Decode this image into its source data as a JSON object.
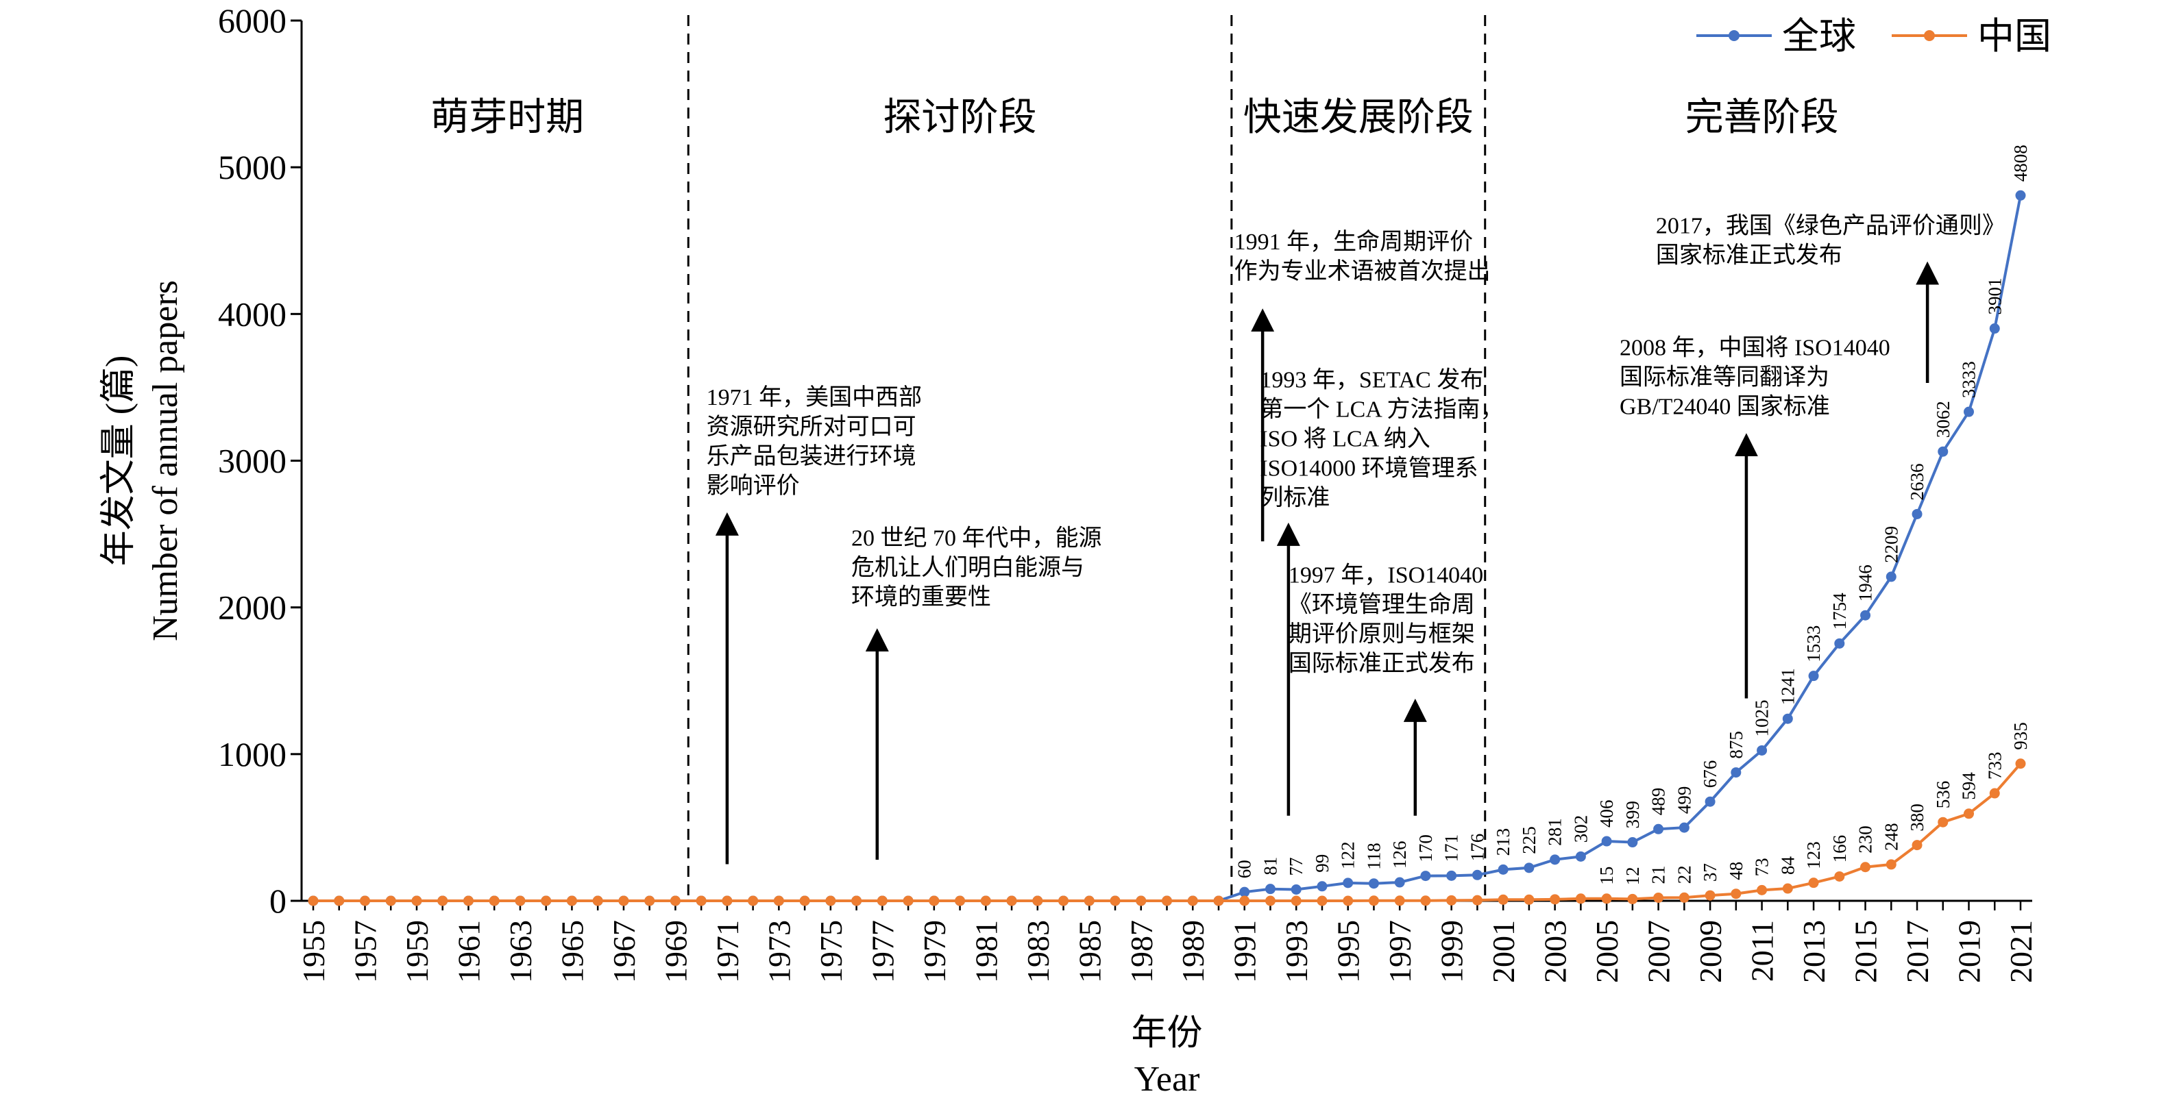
{
  "chart_data": {
    "type": "line",
    "xlabel_cn": "年份",
    "xlabel_en": "Year",
    "ylabel_cn": "年发文量 (篇)",
    "ylabel_en": "Number of annual papers",
    "ylim": [
      0,
      6000
    ],
    "yticks": [
      0,
      1000,
      2000,
      3000,
      4000,
      5000,
      6000
    ],
    "xlim": [
      1955,
      2021
    ],
    "xtick_labels": [
      "1955",
      "1957",
      "1959",
      "1961",
      "1963",
      "1965",
      "1967",
      "1969",
      "1971",
      "1973",
      "1975",
      "1977",
      "1979",
      "1981",
      "1983",
      "1985",
      "1987",
      "1989",
      "1991",
      "1993",
      "1995",
      "1997",
      "1999",
      "2001",
      "2003",
      "2005",
      "2007",
      "2009",
      "2011",
      "2013",
      "2015",
      "2017",
      "2019",
      "2021"
    ],
    "legend_position": "top-right",
    "series": [
      {
        "name": "全球",
        "color": "#4472C4",
        "points": [
          {
            "x": 1955,
            "y": 0
          },
          {
            "x": 1956,
            "y": 0
          },
          {
            "x": 1957,
            "y": 0
          },
          {
            "x": 1958,
            "y": 0
          },
          {
            "x": 1959,
            "y": 0
          },
          {
            "x": 1960,
            "y": 0
          },
          {
            "x": 1961,
            "y": 0
          },
          {
            "x": 1962,
            "y": 0
          },
          {
            "x": 1963,
            "y": 0
          },
          {
            "x": 1964,
            "y": 0
          },
          {
            "x": 1965,
            "y": 0
          },
          {
            "x": 1966,
            "y": 0
          },
          {
            "x": 1967,
            "y": 0
          },
          {
            "x": 1968,
            "y": 0
          },
          {
            "x": 1969,
            "y": 0
          },
          {
            "x": 1970,
            "y": 0
          },
          {
            "x": 1971,
            "y": 0
          },
          {
            "x": 1972,
            "y": 0
          },
          {
            "x": 1973,
            "y": 0
          },
          {
            "x": 1974,
            "y": 0
          },
          {
            "x": 1975,
            "y": 0
          },
          {
            "x": 1976,
            "y": 0
          },
          {
            "x": 1977,
            "y": 0
          },
          {
            "x": 1978,
            "y": 0
          },
          {
            "x": 1979,
            "y": 0
          },
          {
            "x": 1980,
            "y": 0
          },
          {
            "x": 1981,
            "y": 0
          },
          {
            "x": 1982,
            "y": 0
          },
          {
            "x": 1983,
            "y": 0
          },
          {
            "x": 1984,
            "y": 0
          },
          {
            "x": 1985,
            "y": 0
          },
          {
            "x": 1986,
            "y": 0
          },
          {
            "x": 1987,
            "y": 0
          },
          {
            "x": 1988,
            "y": 0
          },
          {
            "x": 1989,
            "y": 0
          },
          {
            "x": 1990,
            "y": 0
          },
          {
            "x": 1991,
            "y": 60,
            "label": "60"
          },
          {
            "x": 1992,
            "y": 81,
            "label": "81"
          },
          {
            "x": 1993,
            "y": 77,
            "label": "77"
          },
          {
            "x": 1994,
            "y": 99,
            "label": "99"
          },
          {
            "x": 1995,
            "y": 122,
            "label": "122"
          },
          {
            "x": 1996,
            "y": 118,
            "label": "118"
          },
          {
            "x": 1997,
            "y": 126,
            "label": "126"
          },
          {
            "x": 1998,
            "y": 170,
            "label": "170"
          },
          {
            "x": 1999,
            "y": 171,
            "label": "171"
          },
          {
            "x": 2000,
            "y": 176,
            "label": "176"
          },
          {
            "x": 2001,
            "y": 213,
            "label": "213"
          },
          {
            "x": 2002,
            "y": 225,
            "label": "225"
          },
          {
            "x": 2003,
            "y": 281,
            "label": "281"
          },
          {
            "x": 2004,
            "y": 302,
            "label": "302"
          },
          {
            "x": 2005,
            "y": 406,
            "label": "406"
          },
          {
            "x": 2006,
            "y": 399,
            "label": "399"
          },
          {
            "x": 2007,
            "y": 489,
            "label": "489"
          },
          {
            "x": 2008,
            "y": 499,
            "label": "499"
          },
          {
            "x": 2009,
            "y": 676,
            "label": "676"
          },
          {
            "x": 2010,
            "y": 875,
            "label": "875"
          },
          {
            "x": 2011,
            "y": 1025,
            "label": "1025"
          },
          {
            "x": 2012,
            "y": 1241,
            "label": "1241"
          },
          {
            "x": 2013,
            "y": 1533,
            "label": "1533"
          },
          {
            "x": 2014,
            "y": 1754,
            "label": "1754"
          },
          {
            "x": 2015,
            "y": 1946,
            "label": "1946"
          },
          {
            "x": 2016,
            "y": 2209,
            "label": "2209"
          },
          {
            "x": 2017,
            "y": 2636,
            "label": "2636"
          },
          {
            "x": 2018,
            "y": 3062,
            "label": "3062"
          },
          {
            "x": 2019,
            "y": 3333,
            "label": "3333"
          },
          {
            "x": 2020,
            "y": 3901,
            "label": "3901"
          },
          {
            "x": 2021,
            "y": 4808,
            "label": "4808"
          }
        ]
      },
      {
        "name": "中国",
        "color": "#ED7D31",
        "points": [
          {
            "x": 1955,
            "y": 0
          },
          {
            "x": 1956,
            "y": 0
          },
          {
            "x": 1957,
            "y": 0
          },
          {
            "x": 1958,
            "y": 0
          },
          {
            "x": 1959,
            "y": 0
          },
          {
            "x": 1960,
            "y": 0
          },
          {
            "x": 1961,
            "y": 0
          },
          {
            "x": 1962,
            "y": 0
          },
          {
            "x": 1963,
            "y": 0
          },
          {
            "x": 1964,
            "y": 0
          },
          {
            "x": 1965,
            "y": 0
          },
          {
            "x": 1966,
            "y": 0
          },
          {
            "x": 1967,
            "y": 0
          },
          {
            "x": 1968,
            "y": 0
          },
          {
            "x": 1969,
            "y": 0
          },
          {
            "x": 1970,
            "y": 0
          },
          {
            "x": 1971,
            "y": 0
          },
          {
            "x": 1972,
            "y": 0
          },
          {
            "x": 1973,
            "y": 0
          },
          {
            "x": 1974,
            "y": 0
          },
          {
            "x": 1975,
            "y": 0
          },
          {
            "x": 1976,
            "y": 0
          },
          {
            "x": 1977,
            "y": 0
          },
          {
            "x": 1978,
            "y": 0
          },
          {
            "x": 1979,
            "y": 0
          },
          {
            "x": 1980,
            "y": 0
          },
          {
            "x": 1981,
            "y": 0
          },
          {
            "x": 1982,
            "y": 0
          },
          {
            "x": 1983,
            "y": 0
          },
          {
            "x": 1984,
            "y": 0
          },
          {
            "x": 1985,
            "y": 0
          },
          {
            "x": 1986,
            "y": 0
          },
          {
            "x": 1987,
            "y": 0
          },
          {
            "x": 1988,
            "y": 0
          },
          {
            "x": 1989,
            "y": 0
          },
          {
            "x": 1990,
            "y": 0
          },
          {
            "x": 1991,
            "y": 0
          },
          {
            "x": 1992,
            "y": 0
          },
          {
            "x": 1993,
            "y": 0
          },
          {
            "x": 1994,
            "y": 0
          },
          {
            "x": 1995,
            "y": 0
          },
          {
            "x": 1996,
            "y": 1
          },
          {
            "x": 1997,
            "y": 1
          },
          {
            "x": 1998,
            "y": 1
          },
          {
            "x": 1999,
            "y": 3
          },
          {
            "x": 2000,
            "y": 4
          },
          {
            "x": 2001,
            "y": 8
          },
          {
            "x": 2002,
            "y": 8
          },
          {
            "x": 2003,
            "y": 10
          },
          {
            "x": 2004,
            "y": 15
          },
          {
            "x": 2005,
            "y": 15,
            "label": "15"
          },
          {
            "x": 2006,
            "y": 12,
            "label": "12"
          },
          {
            "x": 2007,
            "y": 21,
            "label": "21"
          },
          {
            "x": 2008,
            "y": 22,
            "label": "22"
          },
          {
            "x": 2009,
            "y": 37,
            "label": "37"
          },
          {
            "x": 2010,
            "y": 48,
            "label": "48"
          },
          {
            "x": 2011,
            "y": 73,
            "label": "73"
          },
          {
            "x": 2012,
            "y": 84,
            "label": "84"
          },
          {
            "x": 2013,
            "y": 123,
            "label": "123"
          },
          {
            "x": 2014,
            "y": 166,
            "label": "166"
          },
          {
            "x": 2015,
            "y": 230,
            "label": "230"
          },
          {
            "x": 2016,
            "y": 248,
            "label": "248"
          },
          {
            "x": 2017,
            "y": 380,
            "label": "380"
          },
          {
            "x": 2018,
            "y": 536,
            "label": "536"
          },
          {
            "x": 2019,
            "y": 594,
            "label": "594"
          },
          {
            "x": 2020,
            "y": 733,
            "label": "733"
          },
          {
            "x": 2021,
            "y": 935,
            "label": "935"
          }
        ]
      }
    ],
    "phase_dividers": [
      1969.5,
      1990.5,
      2000.3
    ],
    "phases": [
      {
        "label": "萌芽时期",
        "x": 1962.5
      },
      {
        "label": "探讨阶段",
        "x": 1980
      },
      {
        "label": "快速发展阶段",
        "x": 1995.4
      },
      {
        "label": "完善阶段",
        "x": 2011
      }
    ],
    "annotations": [
      {
        "id": "ann-1971",
        "lines": [
          "1971 年，美国中西部",
          "资源研究所对可口可",
          "乐产品包装进行环境",
          "影响评价"
        ],
        "x": 1970.2,
        "y": 3380,
        "arrow": {
          "x": 1971,
          "y_from": 250,
          "y_to": 2620
        }
      },
      {
        "id": "ann-1975",
        "lines": [
          "20 世纪 70 年代中，能源",
          "危机让人们明白能源与",
          "环境的重要性"
        ],
        "x": 1975.8,
        "y": 2420,
        "arrow": {
          "x": 1976.8,
          "y_from": 280,
          "y_to": 1830
        }
      },
      {
        "id": "ann-1991",
        "lines": [
          "1991 年，生命周期评价",
          "作为专业术语被首次提出"
        ],
        "x": 1990.6,
        "y": 4440,
        "arrow": {
          "x": 1991.7,
          "y_from": 2450,
          "y_to": 4010
        }
      },
      {
        "id": "ann-1993",
        "lines": [
          "1993 年，SETAC 发布",
          "第一个 LCA 方法指南，",
          "ISO 将 LCA 纳入",
          "ISO14000 环境管理系",
          "列标准"
        ],
        "x": 1991.6,
        "y": 3500,
        "arrow": {
          "x": 1992.7,
          "y_from": 580,
          "y_to": 2550
        }
      },
      {
        "id": "ann-1997",
        "lines": [
          "1997 年，ISO14040",
          "《环境管理生命周",
          "期评价原则与框架",
          "国际标准正式发布"
        ],
        "x": 1992.7,
        "y": 2170,
        "arrow": {
          "x": 1997.6,
          "y_from": 580,
          "y_to": 1350
        }
      },
      {
        "id": "ann-2008",
        "lines": [
          "2008 年，中国将 ISO14040",
          "国际标准等同翻译为",
          "GB/T24040 国家标准"
        ],
        "x": 2005.5,
        "y": 3720,
        "arrow": {
          "x": 2010.4,
          "y_from": 1380,
          "y_to": 3160
        }
      },
      {
        "id": "ann-2017",
        "lines": [
          "2017，我国《绿色产品评价通则》",
          "国家标准正式发布"
        ],
        "x": 2006.9,
        "y": 4550,
        "arrow": {
          "x": 2017.4,
          "y_from": 3530,
          "y_to": 4330
        }
      }
    ]
  }
}
